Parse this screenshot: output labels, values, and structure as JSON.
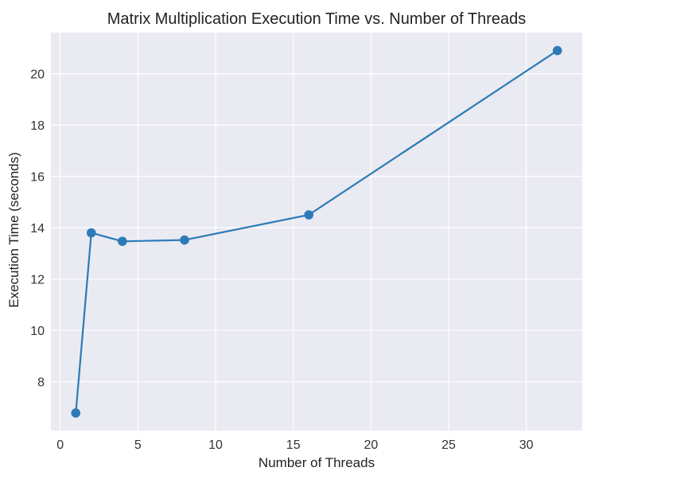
{
  "chart_data": {
    "type": "line",
    "title": "Matrix Multiplication Execution Time vs. Number of Threads",
    "xlabel": "Number of Threads",
    "ylabel": "Execution Time (seconds)",
    "xlim": [
      -0.6,
      33.6
    ],
    "ylim": [
      6.1,
      21.6
    ],
    "xticks": [
      0,
      5,
      10,
      15,
      20,
      25,
      30
    ],
    "yticks": [
      8,
      10,
      12,
      14,
      16,
      18,
      20
    ],
    "grid": true,
    "legend": "none",
    "series": [
      {
        "x": [
          1,
          2,
          4,
          8,
          16,
          32
        ],
        "y": [
          6.78,
          13.8,
          13.47,
          13.52,
          14.5,
          20.9
        ],
        "color": "#2c7bb6",
        "marker": "circle"
      }
    ]
  },
  "colors": {
    "plot_background": "#eaeaf2",
    "grid": "#ffffff",
    "line": "#2c7bb6"
  }
}
